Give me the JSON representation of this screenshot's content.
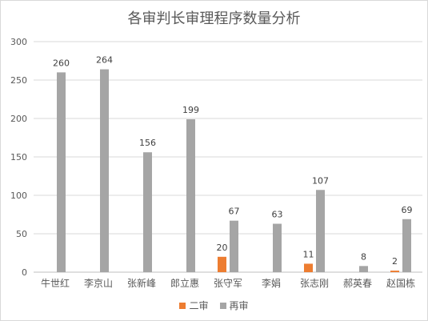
{
  "chart_data": {
    "type": "bar",
    "title": "各审判长审理程序数量分析",
    "categories": [
      "牛世红",
      "李京山",
      "张新峰",
      "郎立惠",
      "张守军",
      "李娟",
      "张志刚",
      "郝英春",
      "赵国栋"
    ],
    "series": [
      {
        "name": "二审",
        "color": "#ed7d31",
        "values": [
          null,
          null,
          null,
          null,
          20,
          null,
          11,
          null,
          2
        ]
      },
      {
        "name": "再审",
        "color": "#a5a5a5",
        "values": [
          260,
          264,
          156,
          199,
          67,
          63,
          107,
          8,
          69
        ]
      }
    ],
    "ylim": [
      0,
      300
    ],
    "yticks": [
      0,
      50,
      100,
      150,
      200,
      250,
      300
    ],
    "grid": true,
    "legend_position": "bottom"
  }
}
